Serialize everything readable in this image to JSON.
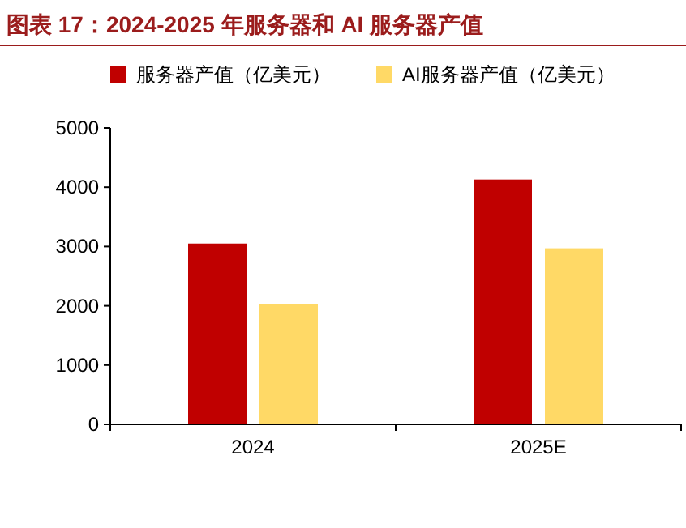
{
  "chart_data": {
    "type": "bar",
    "title": "图表 17：2024-2025 年服务器和 AI 服务器产值",
    "categories": [
      "2024",
      "2025E"
    ],
    "series": [
      {
        "name": "服务器产值（亿美元）",
        "color": "#c00000",
        "values": [
          3050,
          4130
        ]
      },
      {
        "name": "AI服务器产值（亿美元）",
        "color": "#ffd966",
        "values": [
          2030,
          2970
        ]
      }
    ],
    "ylim": [
      0,
      5000
    ],
    "yticks": [
      0,
      1000,
      2000,
      3000,
      4000,
      5000
    ],
    "legend": "top left"
  }
}
